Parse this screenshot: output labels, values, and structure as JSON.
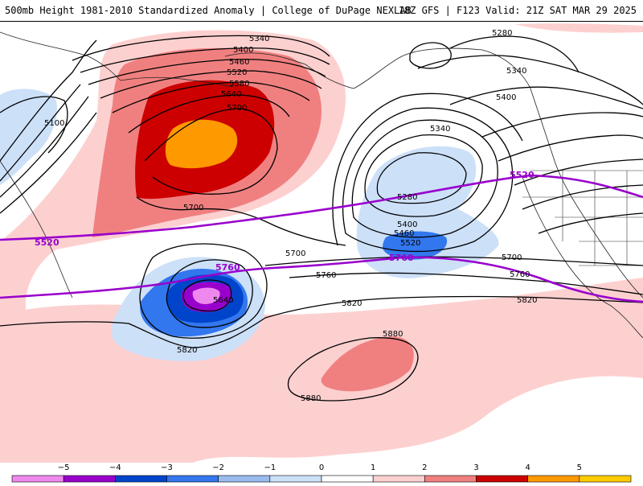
{
  "header": {
    "left_title": "500mb Height 1981-2010 Standardized Anomaly | College of DuPage NEXLAB",
    "right_title": "18Z GFS | F123 Valid: 21Z SAT MAR 29 2025"
  },
  "contours": {
    "c5100": "5100",
    "c5280_a": "5280",
    "c5280_b": "5280",
    "c5340_a": "5340",
    "c5340_b": "5340",
    "c5340_c": "5340",
    "c5400_a": "5400",
    "c5400_b": "5400",
    "c5400_c": "5400",
    "c5460_a": "5460",
    "c5460_b": "5460",
    "c5520_a": "5520",
    "c5520_b": "5520",
    "c5580": "5580",
    "c5640_a": "5640",
    "c5640_b": "5640",
    "c5700_a": "5700",
    "c5700_b": "5700",
    "c5700_c": "5700",
    "c5700_d": "5700",
    "c5760_a": "5760",
    "c5760_b": "5760",
    "c5820_a": "5820",
    "c5820_b": "5820",
    "c5820_c": "5820",
    "c5880_a": "5880",
    "c5880_b": "5880"
  },
  "purple_labels": {
    "p5520_left": "5520",
    "p5520_right": "5520",
    "p5760_left": "5760",
    "p5760_right": "5760"
  },
  "colorbar": {
    "labels": [
      "−5",
      "−4",
      "−3",
      "−2",
      "−1",
      "0",
      "1",
      "2",
      "3",
      "4",
      "5"
    ],
    "colors": [
      "#ee88ee",
      "#9900cc",
      "#0044cc",
      "#3377ee",
      "#99bbee",
      "#cce0f8",
      "#ffffff",
      "#fdd0d0",
      "#f08080",
      "#cc0000",
      "#ff9900",
      "#ffcc00"
    ]
  },
  "colors": {
    "purple_line": "#9900cc",
    "contour": "#000000"
  }
}
